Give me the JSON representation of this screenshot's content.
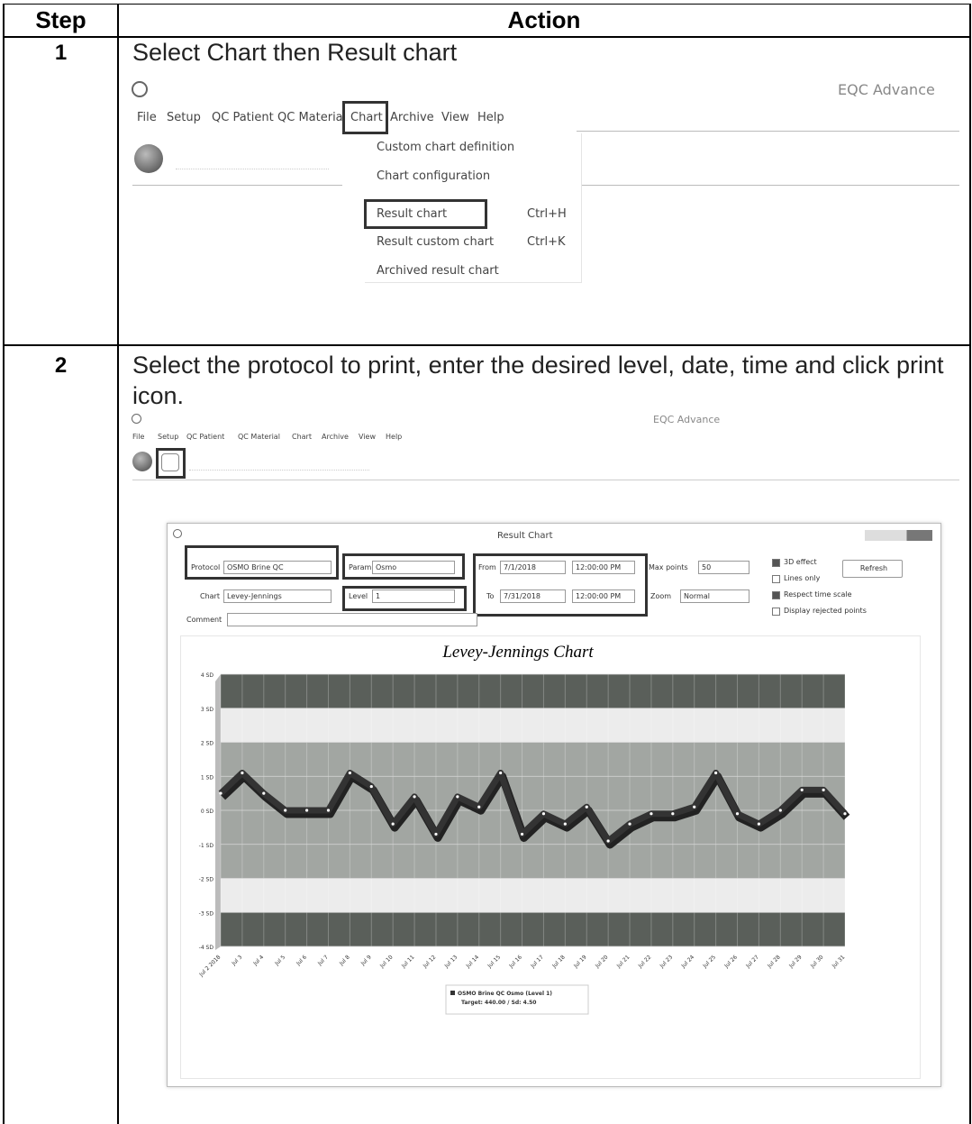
{
  "table": {
    "headers": [
      "Step",
      "Action"
    ],
    "rows": [
      {
        "step": "1",
        "instruction": "Select Chart then Result chart",
        "screenshot": {
          "app_title": "EQC Advance",
          "menu": [
            "File",
            "Setup",
            "QC Patient",
            "QC Material",
            "Chart",
            "Archive",
            "View",
            "Help"
          ],
          "dropdown": [
            {
              "label": "Custom chart definition"
            },
            {
              "label": "Chart configuration"
            },
            {
              "label": "Result chart",
              "shortcut": "Ctrl+H"
            },
            {
              "label": "Result custom chart",
              "shortcut": "Ctrl+K"
            },
            {
              "label": "Archived result chart"
            }
          ]
        }
      },
      {
        "step": "2",
        "instruction": "Select the protocol to print, enter the desired level, date, time and click print icon.",
        "screenshot": {
          "app_title": "EQC Advance",
          "menu": [
            "File",
            "Setup",
            "QC Patient",
            "QC Material",
            "Chart",
            "Archive",
            "View",
            "Help"
          ],
          "window": {
            "title": "Result Chart",
            "fields": {
              "protocol": {
                "label": "Protocol",
                "value": "OSMO Brine QC"
              },
              "param": {
                "label": "Param",
                "value": "Osmo"
              },
              "from": {
                "label": "From",
                "date": "7/1/2018",
                "time": "12:00:00 PM"
              },
              "max_points": {
                "label": "Max points",
                "value": "50"
              },
              "chart": {
                "label": "Chart",
                "value": "Levey-Jennings"
              },
              "level": {
                "label": "Level",
                "value": "1"
              },
              "to": {
                "label": "To",
                "date": "7/31/2018",
                "time": "12:00:00 PM"
              },
              "zoom": {
                "label": "Zoom",
                "value": "Normal"
              },
              "comment": {
                "label": "Comment"
              }
            },
            "options": [
              {
                "label": "3D effect",
                "checked": true
              },
              {
                "label": "Lines only",
                "checked": false
              },
              {
                "label": "Respect time scale",
                "checked": true
              },
              {
                "label": "Display rejected points",
                "checked": false
              }
            ],
            "button": "Refresh",
            "chart": {
              "type": "line",
              "title": "Levey-Jennings Chart",
              "ylim": [
                -4,
                4
              ],
              "yticks": [
                {
                  "value": 4,
                  "label": "4 SD"
                },
                {
                  "value": 3,
                  "label": "3 SD"
                },
                {
                  "value": 2,
                  "label": "2 SD"
                },
                {
                  "value": 1,
                  "label": "1 SD"
                },
                {
                  "value": 0,
                  "label": "0 SD"
                },
                {
                  "value": -1,
                  "label": "-1 SD"
                },
                {
                  "value": -2,
                  "label": "-2 SD"
                },
                {
                  "value": -3,
                  "label": "-3 SD"
                },
                {
                  "value": -4,
                  "label": "-4 SD"
                }
              ],
              "categories": [
                "Jul 2 2018",
                "Jul 3",
                "Jul 4",
                "Jul 5",
                "Jul 6",
                "Jul 7",
                "Jul 8",
                "Jul 9",
                "Jul 10",
                "Jul 11",
                "Jul 12",
                "Jul 13",
                "Jul 14",
                "Jul 15",
                "Jul 16",
                "Jul 17",
                "Jul 18",
                "Jul 19",
                "Jul 20",
                "Jul 21",
                "Jul 22",
                "Jul 23",
                "Jul 24",
                "Jul 25",
                "Jul 26",
                "Jul 27",
                "Jul 28",
                "Jul 29",
                "Jul 30",
                "Jul 31"
              ],
              "series": [
                {
                  "name": "OSMO Brine QC Osmo (Level 1)",
                  "color": "#333333",
                  "values": [
                    0.5,
                    1.1,
                    0.5,
                    0,
                    0,
                    0,
                    1.1,
                    0.7,
                    -0.4,
                    0.4,
                    -0.7,
                    0.4,
                    0.1,
                    1.1,
                    -0.7,
                    -0.1,
                    -0.4,
                    0.1,
                    -0.9,
                    -0.4,
                    -0.1,
                    -0.1,
                    0.1,
                    1.1,
                    -0.1,
                    -0.4,
                    0,
                    0.6,
                    0.6,
                    -0.1
                  ]
                }
              ],
              "legend_note": "Target: 440.00 / Sd: 4.50"
            }
          }
        }
      }
    ]
  }
}
